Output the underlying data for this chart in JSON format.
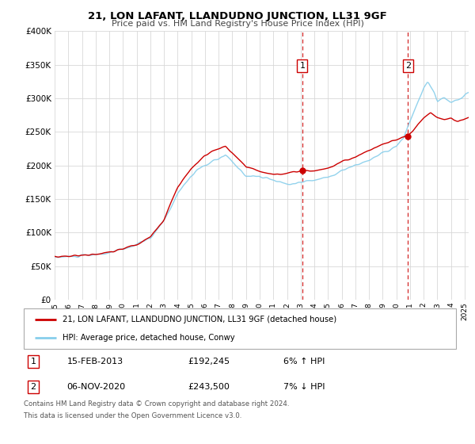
{
  "title": "21, LON LAFANT, LLANDUDNO JUNCTION, LL31 9GF",
  "subtitle": "Price paid vs. HM Land Registry's House Price Index (HPI)",
  "legend_line1": "21, LON LAFANT, LLANDUDNO JUNCTION, LL31 9GF (detached house)",
  "legend_line2": "HPI: Average price, detached house, Conwy",
  "annotation1_label": "1",
  "annotation1_date": "15-FEB-2013",
  "annotation1_price": "£192,245",
  "annotation1_hpi": "6% ↑ HPI",
  "annotation2_label": "2",
  "annotation2_date": "06-NOV-2020",
  "annotation2_price": "£243,500",
  "annotation2_hpi": "7% ↓ HPI",
  "footnote1": "Contains HM Land Registry data © Crown copyright and database right 2024.",
  "footnote2": "This data is licensed under the Open Government Licence v3.0.",
  "red_line_color": "#cc0000",
  "blue_line_color": "#87ceeb",
  "marker_color": "#cc0000",
  "vline_color": "#cc0000",
  "grid_color": "#d8d8d8",
  "background_color": "#ffffff",
  "ylim": [
    0,
    400000
  ],
  "yticks": [
    0,
    50000,
    100000,
    150000,
    200000,
    250000,
    300000,
    350000,
    400000
  ],
  "xlim": [
    1995,
    2025.3
  ],
  "event1_x": 2013.12,
  "event1_y_red": 192245,
  "event2_x": 2020.85,
  "event2_y_red": 243500
}
